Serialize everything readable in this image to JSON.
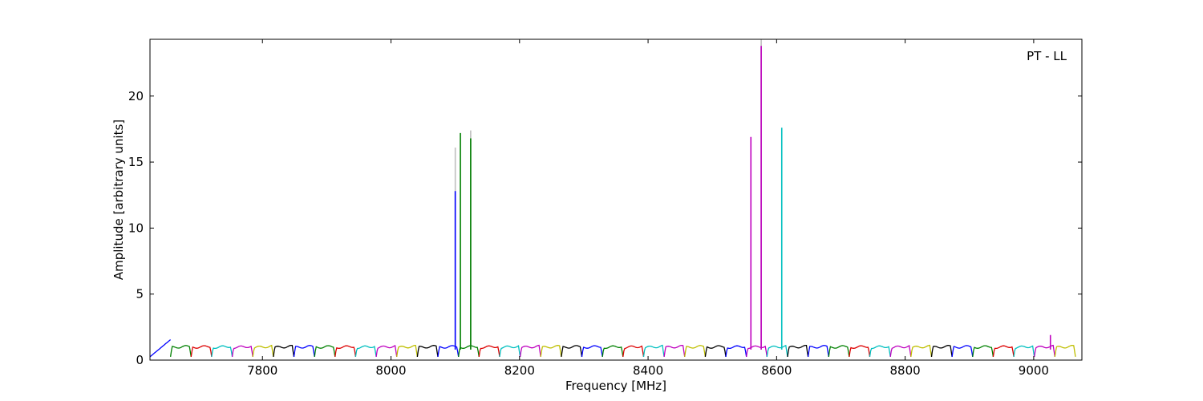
{
  "chart_data": {
    "type": "line",
    "title": "",
    "annotation": "PT - LL",
    "xlabel": "Frequency [MHz]",
    "ylabel": "Amplitude [arbitrary units]",
    "xlim": [
      7625,
      9075
    ],
    "ylim": [
      0,
      24.3
    ],
    "xticks": [
      7800,
      8000,
      8200,
      8400,
      8600,
      8800,
      9000
    ],
    "yticks": [
      0,
      5,
      10,
      15,
      20
    ],
    "grid": false,
    "channel_width_mhz": 32,
    "channels": [
      {
        "start": 7625,
        "color": "#0000ff"
      },
      {
        "start": 7657,
        "color": "#008000"
      },
      {
        "start": 7689,
        "color": "#dd0000"
      },
      {
        "start": 7721,
        "color": "#00bfbf"
      },
      {
        "start": 7753,
        "color": "#bf00bf"
      },
      {
        "start": 7785,
        "color": "#bfbf00"
      },
      {
        "start": 7817,
        "color": "#000000"
      },
      {
        "start": 7849,
        "color": "#0000ff"
      },
      {
        "start": 7881,
        "color": "#008000"
      },
      {
        "start": 7913,
        "color": "#dd0000"
      },
      {
        "start": 7945,
        "color": "#00bfbf"
      },
      {
        "start": 7977,
        "color": "#bf00bf"
      },
      {
        "start": 8009,
        "color": "#bfbf00"
      },
      {
        "start": 8041,
        "color": "#000000"
      },
      {
        "start": 8073,
        "color": "#0000ff"
      },
      {
        "start": 8105,
        "color": "#008000"
      },
      {
        "start": 8137,
        "color": "#dd0000"
      },
      {
        "start": 8169,
        "color": "#00bfbf"
      },
      {
        "start": 8201,
        "color": "#bf00bf"
      },
      {
        "start": 8233,
        "color": "#bfbf00"
      },
      {
        "start": 8265,
        "color": "#000000"
      },
      {
        "start": 8297,
        "color": "#0000ff"
      },
      {
        "start": 8329,
        "color": "#008000"
      },
      {
        "start": 8361,
        "color": "#dd0000"
      },
      {
        "start": 8393,
        "color": "#00bfbf"
      },
      {
        "start": 8425,
        "color": "#bf00bf"
      },
      {
        "start": 8457,
        "color": "#bfbf00"
      },
      {
        "start": 8489,
        "color": "#000000"
      },
      {
        "start": 8521,
        "color": "#0000ff"
      },
      {
        "start": 8553,
        "color": "#bf00bf"
      },
      {
        "start": 8585,
        "color": "#00bfbf"
      },
      {
        "start": 8617,
        "color": "#000000"
      },
      {
        "start": 8649,
        "color": "#0000ff"
      },
      {
        "start": 8681,
        "color": "#008000"
      },
      {
        "start": 8713,
        "color": "#dd0000"
      },
      {
        "start": 8745,
        "color": "#00bfbf"
      },
      {
        "start": 8777,
        "color": "#bf00bf"
      },
      {
        "start": 8809,
        "color": "#bfbf00"
      },
      {
        "start": 8841,
        "color": "#000000"
      },
      {
        "start": 8873,
        "color": "#0000ff"
      },
      {
        "start": 8905,
        "color": "#008000"
      },
      {
        "start": 8937,
        "color": "#dd0000"
      },
      {
        "start": 8969,
        "color": "#00bfbf"
      },
      {
        "start": 9001,
        "color": "#bf00bf"
      },
      {
        "start": 9033,
        "color": "#bfbf00"
      }
    ],
    "spikes": [
      {
        "x": 8100,
        "y": 16.1,
        "color": "#bfbfbf"
      },
      {
        "x": 8100,
        "y": 12.8,
        "color": "#0000ff"
      },
      {
        "x": 8108,
        "y": 17.2,
        "color": "#008000"
      },
      {
        "x": 8124,
        "y": 17.4,
        "color": "#bfbfbf"
      },
      {
        "x": 8124,
        "y": 16.8,
        "color": "#008000"
      },
      {
        "x": 8560,
        "y": 16.9,
        "color": "#bf00bf"
      },
      {
        "x": 8576,
        "y": 24.3,
        "color": "#bfbfbf"
      },
      {
        "x": 8576,
        "y": 23.8,
        "color": "#bf00bf"
      },
      {
        "x": 8608,
        "y": 17.6,
        "color": "#00bfbf"
      },
      {
        "x": 9026,
        "y": 1.9,
        "color": "#bf00bf"
      }
    ]
  }
}
